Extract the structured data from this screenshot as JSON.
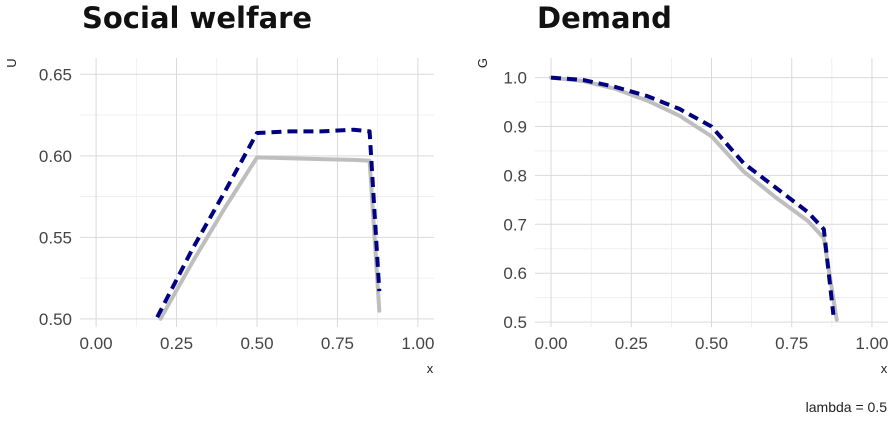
{
  "caption": "lambda = 0.5",
  "colors": {
    "grey_series": "#bebebe",
    "navy_series": "#000080",
    "grid_major": "#d9d9d9",
    "grid_minor": "#ececec"
  },
  "chart_data": [
    {
      "type": "line",
      "title": "Social welfare",
      "xlabel": "x",
      "ylabel": "U",
      "xlim": [
        -0.05,
        1.05
      ],
      "ylim": [
        0.495,
        0.66
      ],
      "x_ticks": [
        0.0,
        0.25,
        0.5,
        0.75,
        1.0
      ],
      "x_tick_labels": [
        "0.00",
        "0.25",
        "0.50",
        "0.75",
        "1.00"
      ],
      "y_ticks": [
        0.5,
        0.55,
        0.6,
        0.65
      ],
      "y_tick_labels": [
        "0.50",
        "0.55",
        "0.60",
        "0.65"
      ],
      "grid": true,
      "series": [
        {
          "style": "solid",
          "color": "#bebebe",
          "x": [
            0.2,
            0.3,
            0.4,
            0.5,
            0.6,
            0.7,
            0.8,
            0.85,
            0.88
          ],
          "y": [
            0.5,
            0.535,
            0.568,
            0.599,
            0.5985,
            0.598,
            0.5975,
            0.597,
            0.505
          ]
        },
        {
          "style": "dashed",
          "color": "#000080",
          "x": [
            0.19,
            0.3,
            0.4,
            0.5,
            0.6,
            0.7,
            0.8,
            0.85,
            0.88
          ],
          "y": [
            0.501,
            0.543,
            0.578,
            0.614,
            0.615,
            0.615,
            0.616,
            0.615,
            0.517
          ]
        }
      ]
    },
    {
      "type": "line",
      "title": "Demand",
      "xlabel": "x",
      "ylabel": "G",
      "xlim": [
        -0.05,
        1.05
      ],
      "ylim": [
        0.49,
        1.04
      ],
      "x_ticks": [
        0.0,
        0.25,
        0.5,
        0.75,
        1.0
      ],
      "x_tick_labels": [
        "0.00",
        "0.25",
        "0.50",
        "0.75",
        "1.00"
      ],
      "y_ticks": [
        0.5,
        0.6,
        0.7,
        0.8,
        0.9,
        1.0
      ],
      "y_tick_labels": [
        "0.5",
        "0.6",
        "0.7",
        "0.8",
        "0.9",
        "1.0"
      ],
      "grid": true,
      "series": [
        {
          "style": "solid",
          "color": "#bebebe",
          "x": [
            0.0,
            0.1,
            0.2,
            0.3,
            0.4,
            0.5,
            0.6,
            0.7,
            0.8,
            0.85,
            0.89
          ],
          "y": [
            1.0,
            0.993,
            0.977,
            0.953,
            0.922,
            0.88,
            0.808,
            0.755,
            0.707,
            0.672,
            0.505
          ]
        },
        {
          "style": "dashed",
          "color": "#000080",
          "x": [
            0.0,
            0.1,
            0.2,
            0.3,
            0.4,
            0.5,
            0.6,
            0.7,
            0.8,
            0.85,
            0.88
          ],
          "y": [
            1.0,
            0.995,
            0.981,
            0.962,
            0.936,
            0.9,
            0.825,
            0.775,
            0.725,
            0.69,
            0.515
          ]
        }
      ]
    }
  ]
}
